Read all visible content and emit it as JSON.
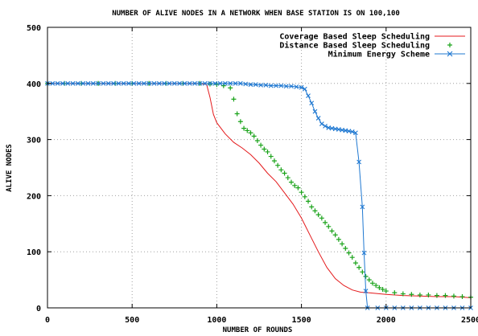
{
  "chart_data": {
    "type": "line",
    "title": "NUMBER  OF  ALIVE  NODES IN A NETWORK WHEN BASE STATION IS ON 100,100",
    "xlabel": "NUMBER OF ROUNDS",
    "ylabel": "ALIVE NODES",
    "xlim": [
      0,
      2500
    ],
    "ylim": [
      0,
      500
    ],
    "x_ticks": [
      "0",
      "500",
      "1000",
      "1500",
      "2000",
      "2500"
    ],
    "y_ticks": [
      "0",
      "100",
      "200",
      "300",
      "400",
      "500"
    ],
    "grid": true,
    "legend_position": "top-right",
    "series": [
      {
        "name": "Coverage Based Sleep Scheduling",
        "color": "#e41a1c",
        "style": "line",
        "points": [
          [
            0,
            400
          ],
          [
            900,
            400
          ],
          [
            940,
            398
          ],
          [
            960,
            375
          ],
          [
            980,
            345
          ],
          [
            1000,
            330
          ],
          [
            1050,
            310
          ],
          [
            1100,
            295
          ],
          [
            1150,
            285
          ],
          [
            1200,
            273
          ],
          [
            1250,
            258
          ],
          [
            1300,
            240
          ],
          [
            1350,
            225
          ],
          [
            1400,
            205
          ],
          [
            1450,
            185
          ],
          [
            1500,
            160
          ],
          [
            1550,
            130
          ],
          [
            1600,
            100
          ],
          [
            1650,
            72
          ],
          [
            1700,
            52
          ],
          [
            1750,
            40
          ],
          [
            1800,
            32
          ],
          [
            1850,
            28
          ],
          [
            1900,
            27
          ],
          [
            2000,
            24
          ],
          [
            2100,
            22
          ],
          [
            2200,
            21
          ],
          [
            2300,
            20
          ],
          [
            2400,
            20
          ],
          [
            2500,
            18
          ]
        ]
      },
      {
        "name": "Distance Based Sleep Scheduling",
        "color": "#1aa31a",
        "style": "plus",
        "points": [
          [
            0,
            400
          ],
          [
            100,
            400
          ],
          [
            200,
            400
          ],
          [
            300,
            400
          ],
          [
            400,
            400
          ],
          [
            500,
            400
          ],
          [
            600,
            400
          ],
          [
            700,
            400
          ],
          [
            800,
            400
          ],
          [
            900,
            400
          ],
          [
            960,
            399
          ],
          [
            1000,
            398
          ],
          [
            1040,
            396
          ],
          [
            1080,
            392
          ],
          [
            1100,
            372
          ],
          [
            1120,
            346
          ],
          [
            1140,
            332
          ],
          [
            1160,
            320
          ],
          [
            1180,
            316
          ],
          [
            1200,
            312
          ],
          [
            1220,
            306
          ],
          [
            1240,
            298
          ],
          [
            1260,
            290
          ],
          [
            1280,
            283
          ],
          [
            1300,
            278
          ],
          [
            1320,
            270
          ],
          [
            1340,
            262
          ],
          [
            1360,
            254
          ],
          [
            1380,
            246
          ],
          [
            1400,
            240
          ],
          [
            1420,
            232
          ],
          [
            1440,
            224
          ],
          [
            1460,
            218
          ],
          [
            1480,
            214
          ],
          [
            1500,
            206
          ],
          [
            1520,
            198
          ],
          [
            1540,
            190
          ],
          [
            1560,
            180
          ],
          [
            1580,
            173
          ],
          [
            1600,
            166
          ],
          [
            1620,
            160
          ],
          [
            1640,
            152
          ],
          [
            1660,
            145
          ],
          [
            1680,
            137
          ],
          [
            1700,
            130
          ],
          [
            1720,
            122
          ],
          [
            1740,
            114
          ],
          [
            1760,
            106
          ],
          [
            1780,
            98
          ],
          [
            1800,
            90
          ],
          [
            1820,
            80
          ],
          [
            1840,
            72
          ],
          [
            1860,
            64
          ],
          [
            1880,
            56
          ],
          [
            1900,
            50
          ],
          [
            1920,
            44
          ],
          [
            1940,
            40
          ],
          [
            1960,
            36
          ],
          [
            1980,
            33
          ],
          [
            2000,
            30
          ],
          [
            2050,
            27
          ],
          [
            2100,
            25
          ],
          [
            2150,
            24
          ],
          [
            2200,
            23
          ],
          [
            2250,
            23
          ],
          [
            2300,
            22
          ],
          [
            2350,
            22
          ],
          [
            2400,
            21
          ],
          [
            2450,
            20
          ],
          [
            2500,
            19
          ]
        ]
      },
      {
        "name": "Minimum Energy Scheme",
        "color": "#1f78d1",
        "style": "cross",
        "points": [
          [
            0,
            400
          ],
          [
            30,
            400
          ],
          [
            60,
            400
          ],
          [
            90,
            400
          ],
          [
            120,
            400
          ],
          [
            150,
            400
          ],
          [
            180,
            400
          ],
          [
            210,
            400
          ],
          [
            240,
            400
          ],
          [
            270,
            400
          ],
          [
            300,
            400
          ],
          [
            330,
            400
          ],
          [
            360,
            400
          ],
          [
            390,
            400
          ],
          [
            420,
            400
          ],
          [
            450,
            400
          ],
          [
            480,
            400
          ],
          [
            510,
            400
          ],
          [
            540,
            400
          ],
          [
            570,
            400
          ],
          [
            600,
            400
          ],
          [
            630,
            400
          ],
          [
            660,
            400
          ],
          [
            690,
            400
          ],
          [
            720,
            400
          ],
          [
            750,
            400
          ],
          [
            780,
            400
          ],
          [
            810,
            400
          ],
          [
            840,
            400
          ],
          [
            870,
            400
          ],
          [
            900,
            400
          ],
          [
            930,
            400
          ],
          [
            960,
            400
          ],
          [
            990,
            400
          ],
          [
            1020,
            400
          ],
          [
            1050,
            400
          ],
          [
            1080,
            400
          ],
          [
            1110,
            400
          ],
          [
            1140,
            400
          ],
          [
            1170,
            399
          ],
          [
            1200,
            398
          ],
          [
            1230,
            398
          ],
          [
            1260,
            397
          ],
          [
            1290,
            397
          ],
          [
            1320,
            396
          ],
          [
            1350,
            396
          ],
          [
            1380,
            396
          ],
          [
            1410,
            395
          ],
          [
            1440,
            395
          ],
          [
            1470,
            394
          ],
          [
            1500,
            393
          ],
          [
            1520,
            390
          ],
          [
            1540,
            378
          ],
          [
            1560,
            365
          ],
          [
            1580,
            350
          ],
          [
            1600,
            338
          ],
          [
            1620,
            328
          ],
          [
            1640,
            324
          ],
          [
            1660,
            321
          ],
          [
            1680,
            320
          ],
          [
            1700,
            319
          ],
          [
            1720,
            318
          ],
          [
            1740,
            317
          ],
          [
            1760,
            316
          ],
          [
            1780,
            315
          ],
          [
            1800,
            314
          ],
          [
            1820,
            312
          ],
          [
            1840,
            260
          ],
          [
            1860,
            180
          ],
          [
            1870,
            98
          ],
          [
            1880,
            30
          ],
          [
            1890,
            0
          ],
          [
            1950,
            0
          ],
          [
            2000,
            0
          ],
          [
            2050,
            0
          ],
          [
            2100,
            0
          ],
          [
            2150,
            0
          ],
          [
            2200,
            0
          ],
          [
            2250,
            0
          ],
          [
            2300,
            0
          ],
          [
            2350,
            0
          ],
          [
            2400,
            0
          ],
          [
            2450,
            0
          ],
          [
            2500,
            0
          ]
        ]
      }
    ]
  }
}
